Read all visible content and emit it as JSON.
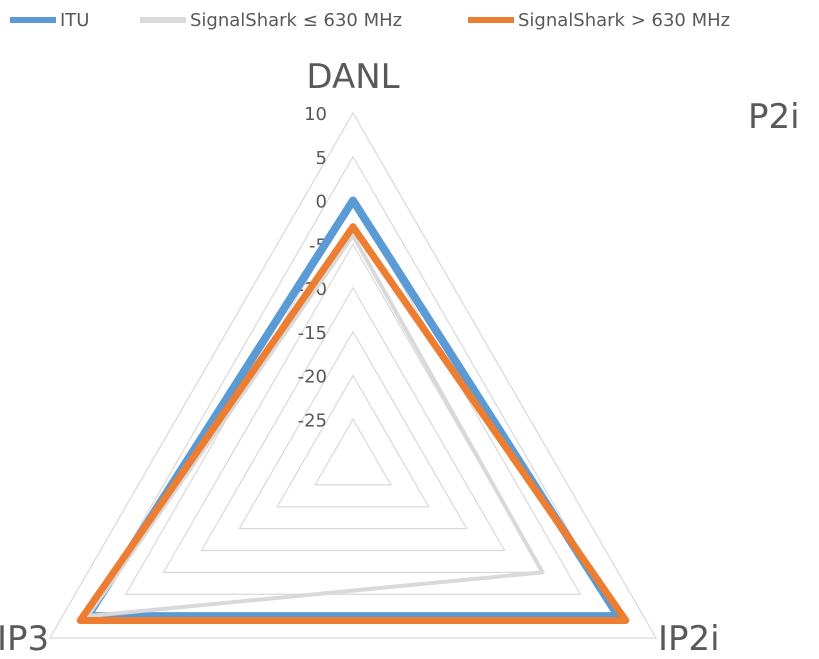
{
  "chart_data": {
    "type": "radar",
    "axes": [
      "DANL",
      "IP2i",
      "IP3"
    ],
    "r_ticks": [
      "10",
      "5",
      "0",
      "-5",
      "-10",
      "-15",
      "-20",
      "-25"
    ],
    "r_range": [
      -30,
      10
    ],
    "grid": true,
    "legend_position": "top",
    "series": [
      {
        "name": "ITU",
        "color": "#5B9BD5",
        "values": [
          0,
          5,
          5
        ]
      },
      {
        "name": "SignalShark ≤ 630 MHz",
        "color": "#D9D9D9",
        "values": [
          -4,
          -5,
          5
        ]
      },
      {
        "name": "SignalShark > 630 MHz",
        "color": "#ED7D31",
        "values": [
          -3,
          6,
          6
        ]
      }
    ],
    "corner_label": "P2i"
  }
}
